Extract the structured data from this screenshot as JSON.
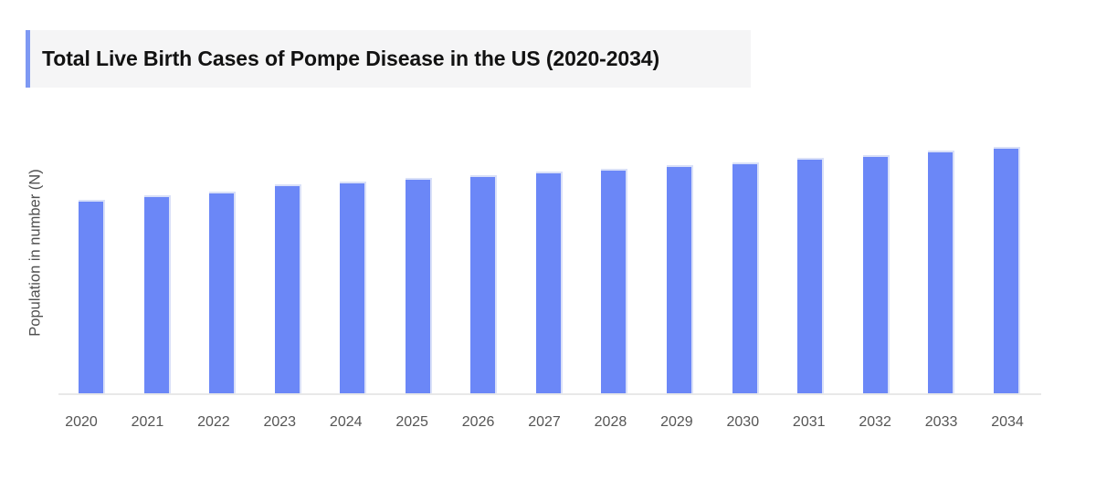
{
  "title": {
    "text": "Total Live Birth Cases of Pompe Disease in the US (2020-2034)"
  },
  "y_axis": {
    "label": "Population in number (N)"
  },
  "colors": {
    "bar": "#6b87f7",
    "bar_edge_highlight": "#d9e0f8",
    "title_accent": "#7e99f3",
    "title_background": "#f5f5f6",
    "title_text": "#121212",
    "axis_line": "#e8e8e8",
    "tick_label_text": "#555555",
    "y_axis_label_text": "#4f4f4f",
    "page_background": "#ffffff"
  },
  "chart_data": {
    "type": "bar",
    "title": "Total Live Birth Cases of Pompe Disease in the US (2020-2034)",
    "xlabel": "",
    "ylabel": "Population in number (N)",
    "categories": [
      "2020",
      "2021",
      "2022",
      "2023",
      "2024",
      "2025",
      "2026",
      "2027",
      "2028",
      "2029",
      "2030",
      "2031",
      "2032",
      "2033",
      "2034"
    ],
    "values": [
      78.4,
      80.2,
      81.9,
      84.6,
      85.8,
      87.3,
      88.3,
      89.9,
      90.9,
      92.4,
      93.7,
      95.4,
      96.6,
      98.5,
      100
    ],
    "value_note": "No y-axis tick labels, gridlines, or data labels are shown in the chart; values are estimated from bar heights as a relative index with 2034 = 100.",
    "ylim": [
      0,
      100
    ],
    "grid": false,
    "legend": false
  }
}
